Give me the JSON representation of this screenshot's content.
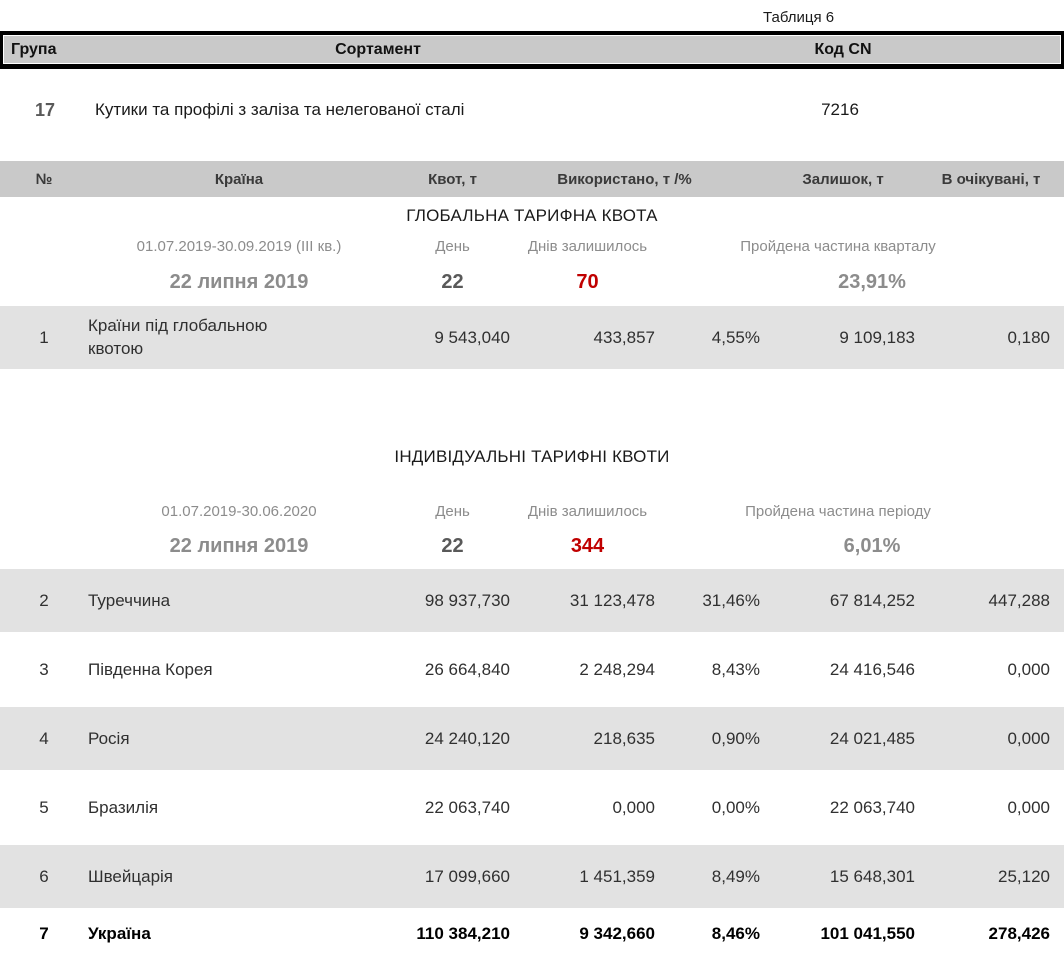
{
  "page": {
    "caption": "Таблиця 6"
  },
  "colors": {
    "header_band": "#c9c9c9",
    "row_stripe": "#e2e2e2",
    "text_dark": "#303030",
    "text_gray": "#8c8c8c",
    "text_midgray": "#595959",
    "accent_red": "#c00000"
  },
  "top_table": {
    "headers": {
      "group": "Група",
      "sortament": "Сортамент",
      "code": "Код CN"
    },
    "row": {
      "group": "17",
      "sortament": "Кутики та профілі з заліза та нелегованої сталі",
      "code": "7216"
    }
  },
  "quota_table": {
    "columns": {
      "num": "№",
      "country": "Країна",
      "quota": "Квот, т",
      "used": "Використано, т /%",
      "remaining": "Залишок, т",
      "expected": "В очікувані, т"
    },
    "global": {
      "title": "ГЛОБАЛЬНА ТАРИФНА КВОТА",
      "period": "01.07.2019-30.09.2019  (III кв.)",
      "labels": {
        "day": "День",
        "days_left": "Днів залишилось",
        "elapsed": "Пройдена частина кварталу"
      },
      "current": {
        "date": "22 липня 2019",
        "day": "22",
        "days_left": "70",
        "elapsed": "23,91%"
      },
      "rows": [
        {
          "num": "1",
          "country": "Країни під глобальною квотою",
          "quota": "9 543,040",
          "used": "433,857",
          "used_pct": "4,55%",
          "remaining": "9 109,183",
          "expected": "0,180"
        }
      ]
    },
    "individual": {
      "title": "ІНДИВІДУАЛЬНІ ТАРИФНІ КВОТИ",
      "period": "01.07.2019-30.06.2020",
      "labels": {
        "day": "День",
        "days_left": "Днів залишилось",
        "elapsed": "Пройдена частина періоду"
      },
      "current": {
        "date": "22 липня 2019",
        "day": "22",
        "days_left": "344",
        "elapsed": "6,01%"
      },
      "rows": [
        {
          "num": "2",
          "country": "Туреччина",
          "quota": "98 937,730",
          "used": "31 123,478",
          "used_pct": "31,46%",
          "remaining": "67 814,252",
          "expected": "447,288"
        },
        {
          "num": "3",
          "country": "Південна Корея",
          "quota": "26 664,840",
          "used": "2 248,294",
          "used_pct": "8,43%",
          "remaining": "24 416,546",
          "expected": "0,000"
        },
        {
          "num": "4",
          "country": "Росія",
          "quota": "24 240,120",
          "used": "218,635",
          "used_pct": "0,90%",
          "remaining": "24 021,485",
          "expected": "0,000"
        },
        {
          "num": "5",
          "country": "Бразилія",
          "quota": "22 063,740",
          "used": "0,000",
          "used_pct": "0,00%",
          "remaining": "22 063,740",
          "expected": "0,000"
        },
        {
          "num": "6",
          "country": "Швейцарія",
          "quota": "17 099,660",
          "used": "1 451,359",
          "used_pct": "8,49%",
          "remaining": "15 648,301",
          "expected": "25,120"
        },
        {
          "num": "7",
          "country": "Україна",
          "quota": "110 384,210",
          "used": "9 342,660",
          "used_pct": "8,46%",
          "remaining": "101 041,550",
          "expected": "278,426"
        }
      ]
    }
  }
}
